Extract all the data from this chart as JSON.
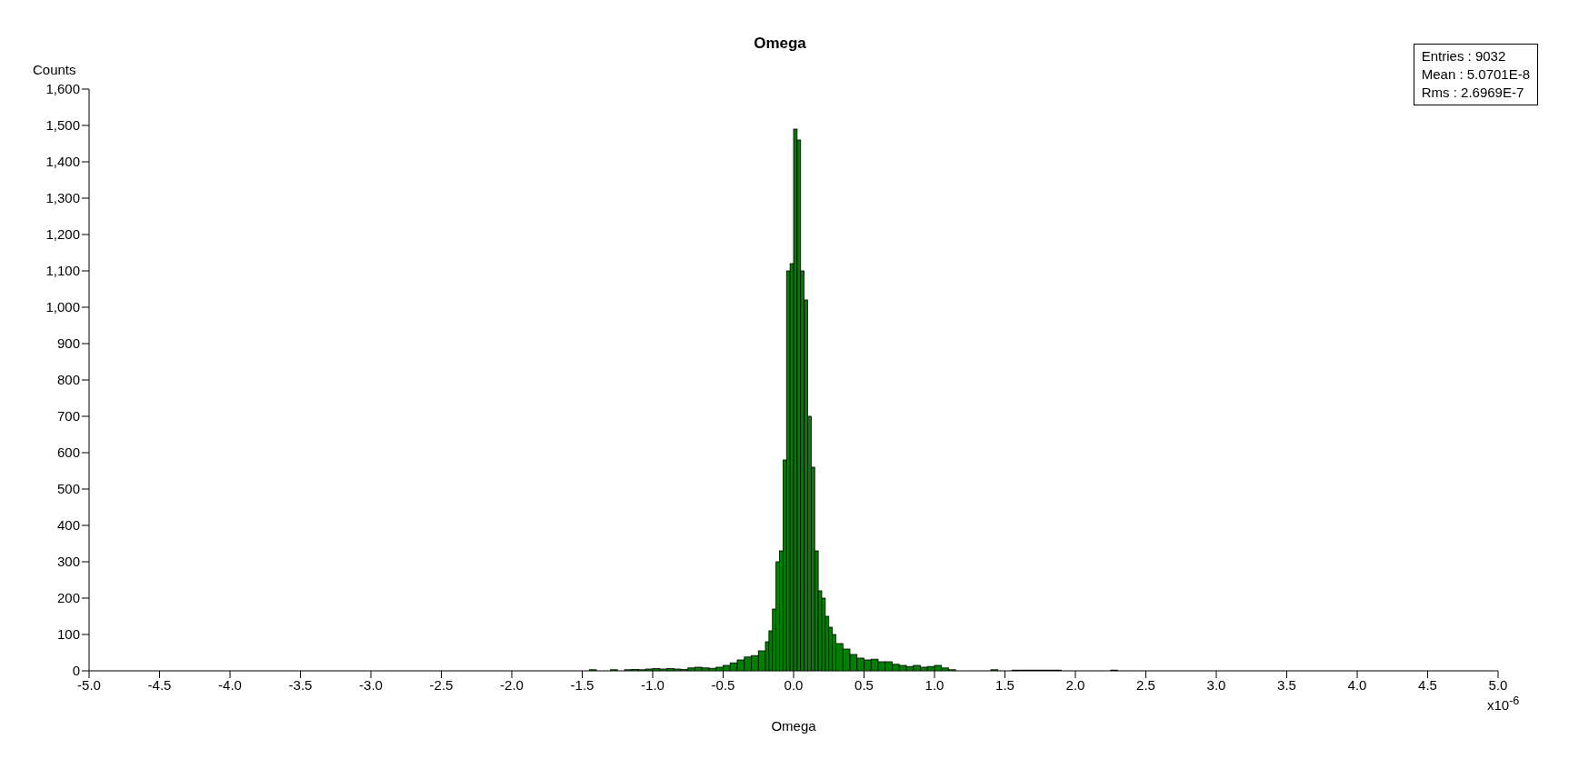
{
  "chart_data": {
    "type": "histogram",
    "title": "Omega",
    "xlabel": "Omega",
    "ylabel": "Counts",
    "color": "#008000",
    "annotations": [
      "x10$^{-6}$",
      "Entries : 9032",
      "Mean : 5.0701E-8",
      "Rms : 2.6969E-7"
    ],
    "bins": [
      -1.45,
      -1.4,
      -1.3,
      -1.25,
      -1.2,
      -1.15,
      -1.1,
      -1.05,
      -1.0,
      -0.95,
      -0.9,
      -0.85,
      -0.8,
      -0.75,
      -0.7,
      -0.65,
      -0.6,
      -0.55,
      -0.5,
      -0.45,
      -0.4,
      -0.35,
      -0.3,
      -0.25,
      -0.2,
      -0.175,
      -0.15,
      -0.125,
      -0.1,
      -0.075,
      -0.05,
      -0.025,
      0.0,
      0.025,
      0.05,
      0.075,
      0.1,
      0.125,
      0.15,
      0.175,
      0.2,
      0.225,
      0.25,
      0.275,
      0.3,
      0.35,
      0.4,
      0.45,
      0.5,
      0.55,
      0.6,
      0.65,
      0.7,
      0.75,
      0.8,
      0.85,
      0.9,
      0.95,
      1.0,
      1.05,
      1.1,
      1.15,
      1.4,
      1.45,
      1.55,
      1.9,
      2.25,
      2.3
    ],
    "values": [
      3,
      0,
      3,
      0,
      3,
      4,
      3,
      5,
      6,
      5,
      6,
      5,
      4,
      8,
      10,
      8,
      7,
      10,
      15,
      22,
      30,
      38,
      42,
      55,
      80,
      110,
      170,
      300,
      330,
      580,
      1100,
      1120,
      1490,
      1460,
      1100,
      1020,
      700,
      560,
      330,
      220,
      200,
      150,
      120,
      100,
      75,
      60,
      45,
      35,
      30,
      32,
      25,
      25,
      18,
      15,
      12,
      15,
      10,
      12,
      15,
      8,
      3,
      0,
      3,
      0,
      2,
      0,
      2
    ],
    "xlim": [
      -5,
      5
    ],
    "xticks": [
      {
        "value": -5,
        "label": "-5.0"
      },
      -4.5,
      {
        "value": -4,
        "label": "-4.0"
      },
      -3.5,
      {
        "value": -3,
        "label": "-3.0"
      },
      -2.5,
      {
        "value": -2,
        "label": "-2.0"
      },
      -1.5,
      {
        "value": -1,
        "label": "-1.0"
      },
      -0.5,
      {
        "value": 0,
        "label": "0.0"
      },
      0.5,
      {
        "value": 1,
        "label": "1.0"
      },
      1.5,
      {
        "value": 2,
        "label": "2.0"
      },
      2.5,
      {
        "value": 3,
        "label": "3.0"
      },
      3.5,
      {
        "value": 4,
        "label": "4.0"
      },
      4.5,
      {
        "value": 5,
        "label": "5.0"
      }
    ],
    "ylim": [
      0,
      1600
    ],
    "yticks": [
      0,
      100,
      200,
      300,
      400,
      500,
      600,
      700,
      800,
      900,
      {
        "value": 1000,
        "label": "1,000"
      },
      {
        "value": 1100,
        "label": "1,100"
      },
      {
        "value": 1200,
        "label": "1,200"
      },
      {
        "value": 1300,
        "label": "1,300"
      },
      {
        "value": 1400,
        "label": "1,400"
      },
      {
        "value": 1500,
        "label": "1,500"
      },
      {
        "value": 1600,
        "label": "1,600"
      }
    ],
    "grid": false,
    "legend": false
  }
}
